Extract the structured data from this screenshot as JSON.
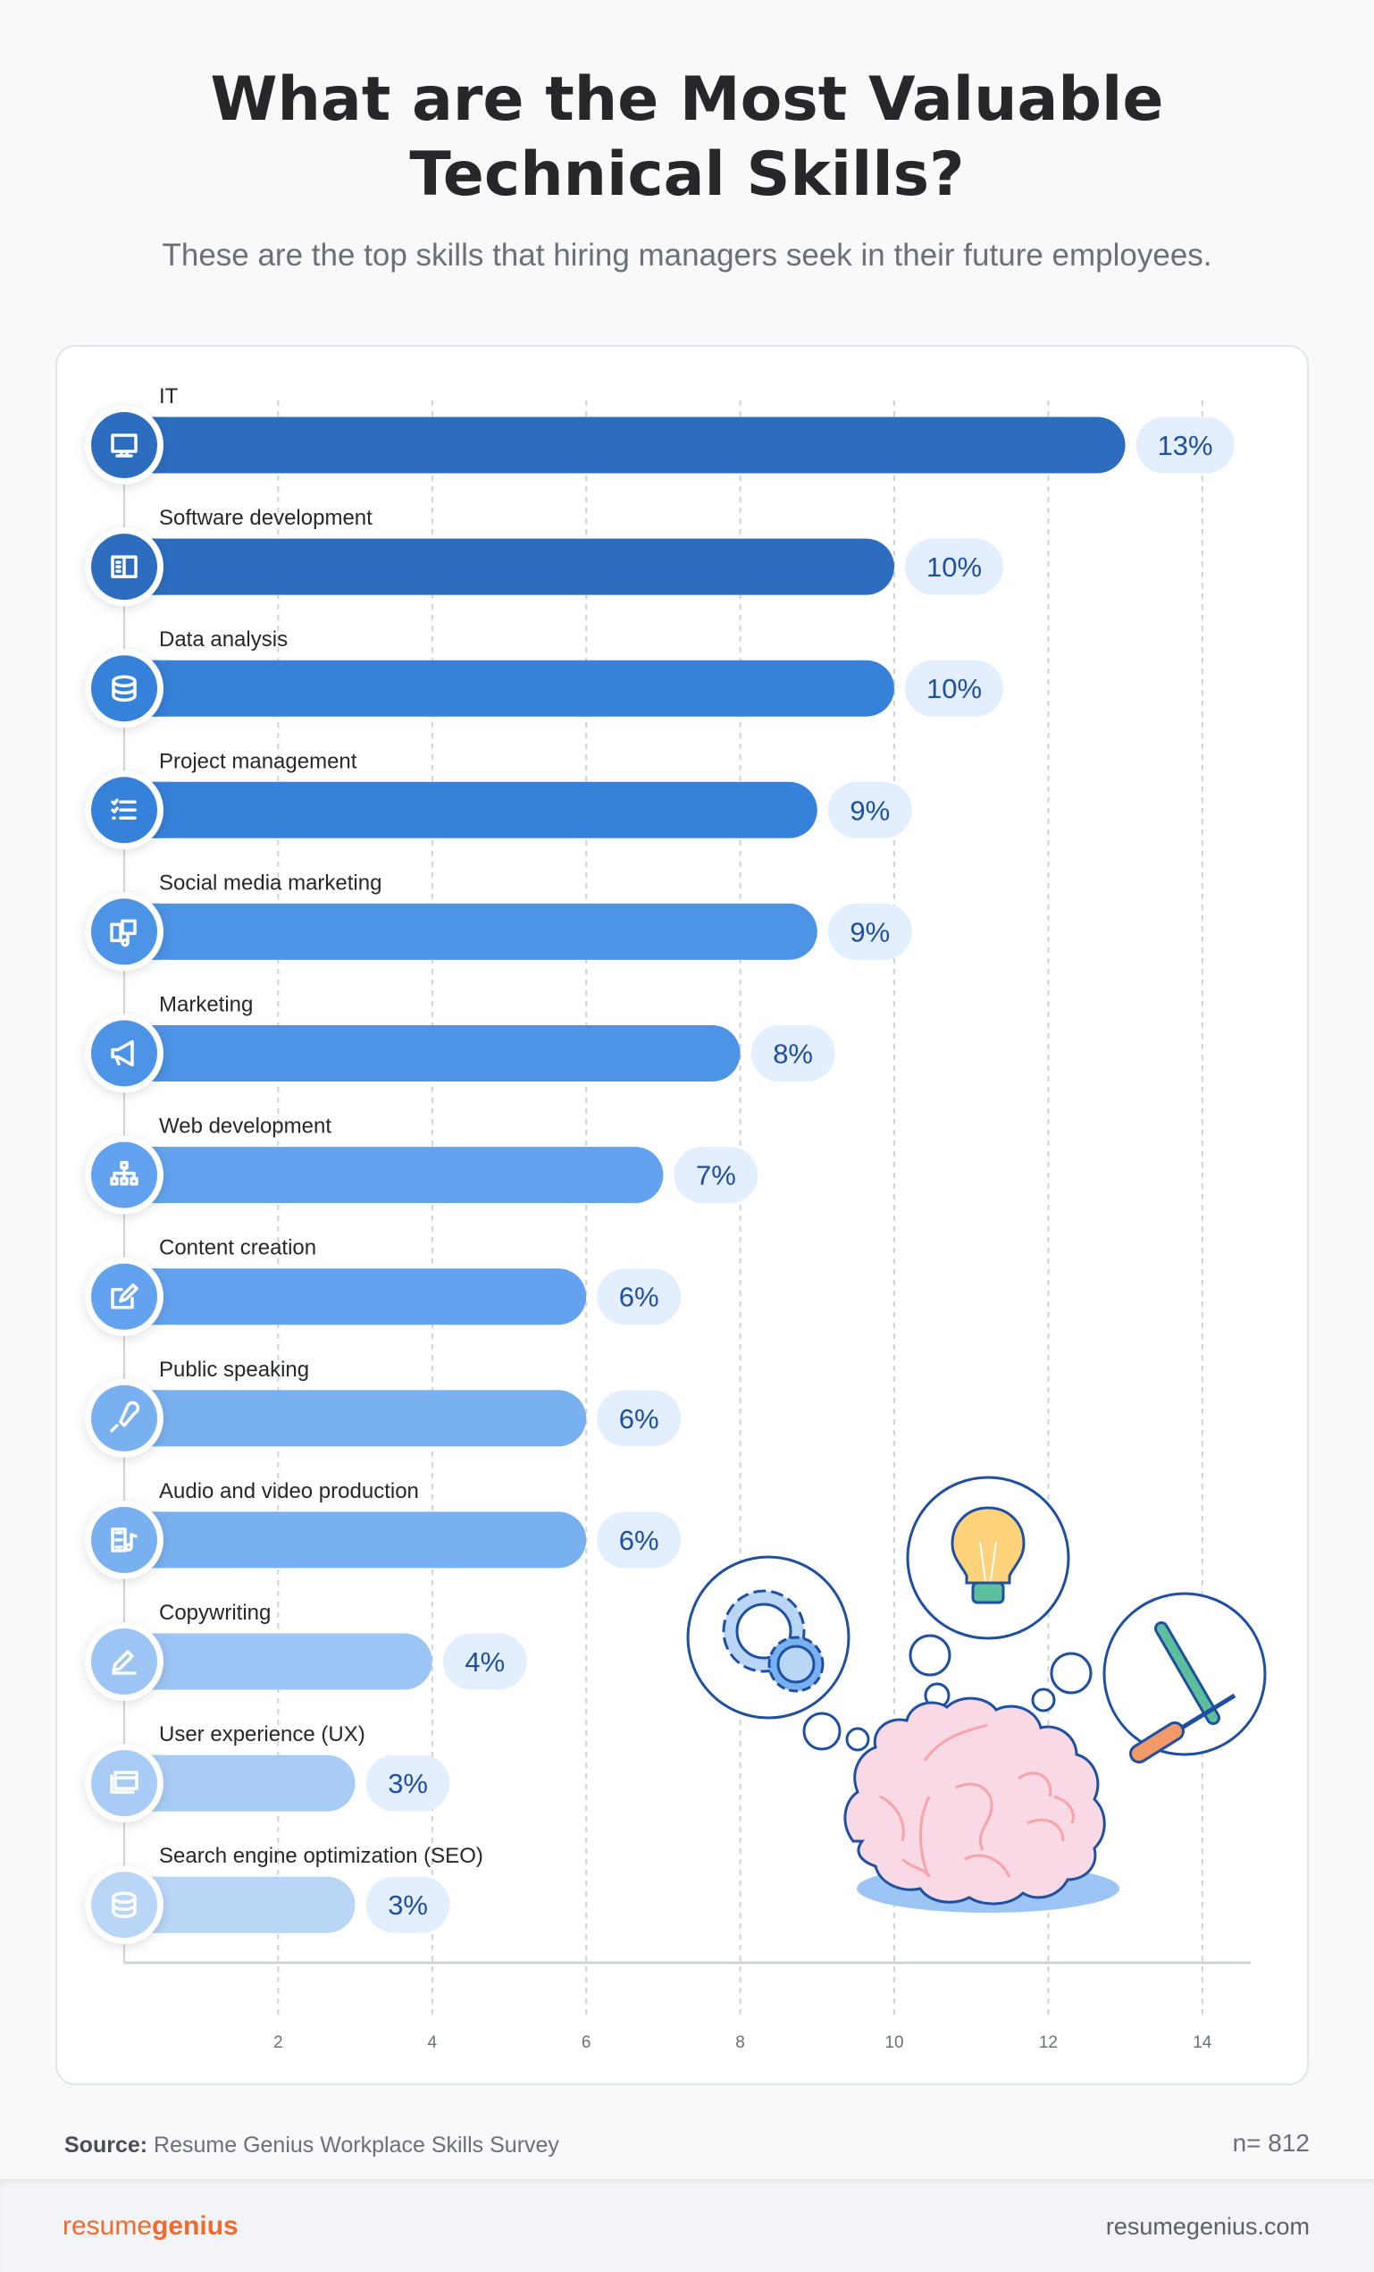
{
  "header": {
    "title_line1": "What are the Most Valuable",
    "title_line2": "Technical Skills?",
    "subtitle": "These are the top skills that hiring managers seek in their future employees."
  },
  "chart_data": {
    "type": "bar",
    "orientation": "horizontal",
    "categories": [
      "IT",
      "Software development",
      "Data analysis",
      "Project management",
      "Social media marketing",
      "Marketing",
      "Web development",
      "Content creation",
      "Public speaking",
      "Audio and video production",
      "Copywriting",
      "User experience (UX)",
      "Search engine optimization (SEO)"
    ],
    "values": [
      13,
      10,
      10,
      9,
      9,
      8,
      7,
      6,
      6,
      6,
      4,
      3,
      3
    ],
    "value_labels": [
      "13%",
      "10%",
      "10%",
      "9%",
      "9%",
      "8%",
      "7%",
      "6%",
      "6%",
      "6%",
      "4%",
      "3%",
      "3%"
    ],
    "icons": [
      "monitor-icon",
      "code-panel-icon",
      "database-icon",
      "checklist-icon",
      "media-icon",
      "megaphone-icon",
      "sitemap-icon",
      "edit-icon",
      "microphone-icon",
      "film-music-icon",
      "pen-icon",
      "browser-window-icon",
      "database-icon"
    ],
    "bar_colors": [
      "#2c6dc0",
      "#2c6dc0",
      "#3681d9",
      "#3681d9",
      "#4d93e6",
      "#4d93e6",
      "#62a2ee",
      "#62a2ee",
      "#79b0f0",
      "#79b0f0",
      "#9cc4f4",
      "#a9ccf6",
      "#b9d6f7"
    ],
    "x_ticks": [
      "2",
      "4",
      "6",
      "8",
      "10",
      "12",
      "14"
    ],
    "xlim": [
      0,
      14.5
    ],
    "grid": true,
    "xlabel": "",
    "ylabel": ""
  },
  "colors": {
    "label_pill_bg": "#e3efff",
    "label_text": "#1f4fa0",
    "accent": "#ef6a2c"
  },
  "footer_note": {
    "source_label": "Source:",
    "source_text": "Resume Genius Workplace Skills Survey",
    "sample": "n= 812"
  },
  "footer": {
    "logo_light": "resume",
    "logo_bold": "genius",
    "site": "resumegenius.com"
  }
}
